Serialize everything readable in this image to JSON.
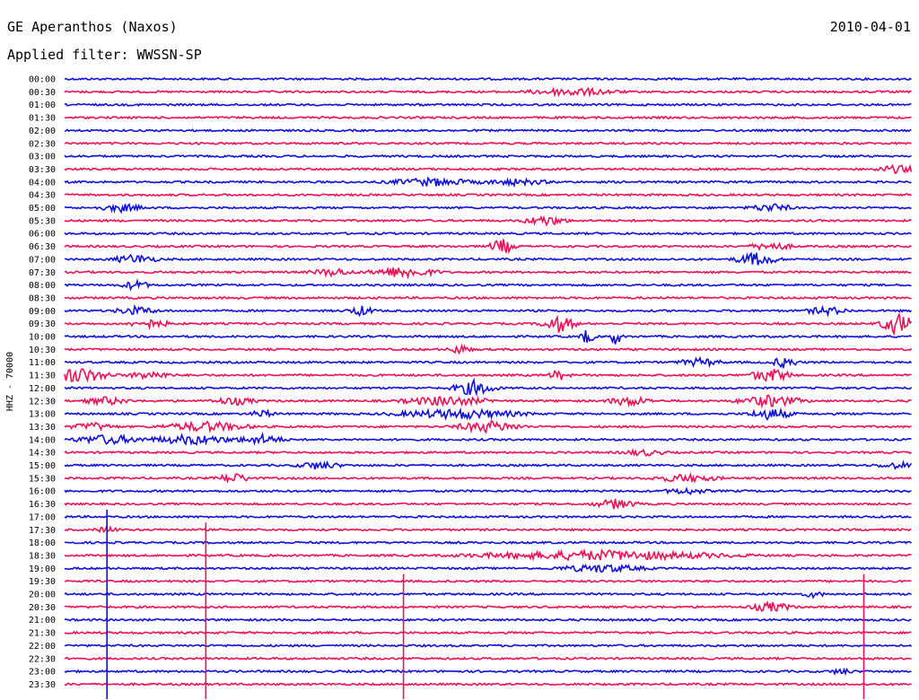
{
  "chart_data": {
    "type": "line",
    "title": "GE Aperanthos (Naxos)",
    "subtitle": "Applied filter: WWSSN-SP",
    "date": "2010-04-01",
    "ylabel": "HHZ - 70000",
    "ytick_labels": [
      "00:00",
      "00:30",
      "01:00",
      "01:30",
      "02:00",
      "02:30",
      "03:00",
      "03:30",
      "04:00",
      "04:30",
      "05:00",
      "05:30",
      "06:00",
      "06:30",
      "07:00",
      "07:30",
      "08:00",
      "08:30",
      "09:00",
      "09:30",
      "10:00",
      "10:30",
      "11:00",
      "11:30",
      "12:00",
      "12:30",
      "13:00",
      "13:30",
      "14:00",
      "14:30",
      "15:00",
      "15:30",
      "16:00",
      "16:30",
      "17:00",
      "17:30",
      "18:00",
      "18:30",
      "19:00",
      "19:30",
      "20:00",
      "20:30",
      "21:00",
      "21:30",
      "22:00",
      "22:30",
      "23:00",
      "23:30"
    ],
    "minutes_per_line": 30,
    "colors": [
      "#1010dd",
      "#ee1155"
    ],
    "events": [
      {
        "line": 1,
        "minute": 18,
        "amp": 4,
        "dur": 2
      },
      {
        "line": 7,
        "minute": 29.5,
        "amp": 4,
        "dur": 1
      },
      {
        "line": 8,
        "minute": 13,
        "amp": 4,
        "dur": 2
      },
      {
        "line": 8,
        "minute": 16,
        "amp": 3,
        "dur": 1.5
      },
      {
        "line": 10,
        "minute": 2,
        "amp": 4,
        "dur": 1
      },
      {
        "line": 10,
        "minute": 25,
        "amp": 4,
        "dur": 1
      },
      {
        "line": 11,
        "minute": 17,
        "amp": 5,
        "dur": 1
      },
      {
        "line": 13,
        "minute": 15.5,
        "amp": 8,
        "dur": 0.6
      },
      {
        "line": 13,
        "minute": 25,
        "amp": 4,
        "dur": 1
      },
      {
        "line": 14,
        "minute": 2.5,
        "amp": 5,
        "dur": 1
      },
      {
        "line": 14,
        "minute": 24.5,
        "amp": 7,
        "dur": 1
      },
      {
        "line": 15,
        "minute": 12,
        "amp": 6,
        "dur": 1.5
      },
      {
        "line": 15,
        "minute": 9.5,
        "amp": 4,
        "dur": 1
      },
      {
        "line": 16,
        "minute": 2.5,
        "amp": 5,
        "dur": 0.6
      },
      {
        "line": 18,
        "minute": 2.5,
        "amp": 4,
        "dur": 1
      },
      {
        "line": 18,
        "minute": 10.5,
        "amp": 5,
        "dur": 0.6
      },
      {
        "line": 18,
        "minute": 27,
        "amp": 4,
        "dur": 1
      },
      {
        "line": 19,
        "minute": 3,
        "amp": 4,
        "dur": 1
      },
      {
        "line": 19,
        "minute": 17.5,
        "amp": 9,
        "dur": 0.8
      },
      {
        "line": 19,
        "minute": 29.5,
        "amp": 12,
        "dur": 0.8
      },
      {
        "line": 20,
        "minute": 18.5,
        "amp": 9,
        "dur": 0.3
      },
      {
        "line": 20,
        "minute": 19.5,
        "amp": 9,
        "dur": 0.3
      },
      {
        "line": 21,
        "minute": 14,
        "amp": 5,
        "dur": 0.5
      },
      {
        "line": 22,
        "minute": 22.5,
        "amp": 4,
        "dur": 1
      },
      {
        "line": 22,
        "minute": 25.5,
        "amp": 6,
        "dur": 0.6
      },
      {
        "line": 23,
        "minute": 0.5,
        "amp": 8,
        "dur": 1.5
      },
      {
        "line": 23,
        "minute": 3,
        "amp": 4,
        "dur": 1
      },
      {
        "line": 23,
        "minute": 17.5,
        "amp": 5,
        "dur": 0.5
      },
      {
        "line": 23,
        "minute": 25,
        "amp": 7,
        "dur": 1
      },
      {
        "line": 24,
        "minute": 14.5,
        "amp": 8,
        "dur": 1
      },
      {
        "line": 25,
        "minute": 1.5,
        "amp": 4,
        "dur": 1
      },
      {
        "line": 25,
        "minute": 6,
        "amp": 4,
        "dur": 1
      },
      {
        "line": 25,
        "minute": 13.5,
        "amp": 5,
        "dur": 2
      },
      {
        "line": 25,
        "minute": 20,
        "amp": 5,
        "dur": 1
      },
      {
        "line": 25,
        "minute": 25,
        "amp": 6,
        "dur": 1.5
      },
      {
        "line": 26,
        "minute": 7,
        "amp": 4,
        "dur": 0.5
      },
      {
        "line": 26,
        "minute": 14,
        "amp": 5,
        "dur": 3
      },
      {
        "line": 26,
        "minute": 25,
        "amp": 6,
        "dur": 1
      },
      {
        "line": 27,
        "minute": 1,
        "amp": 4,
        "dur": 1
      },
      {
        "line": 27,
        "minute": 5,
        "amp": 5,
        "dur": 2
      },
      {
        "line": 27,
        "minute": 15,
        "amp": 6,
        "dur": 1.5
      },
      {
        "line": 28,
        "minute": 1.5,
        "amp": 5,
        "dur": 1.5
      },
      {
        "line": 28,
        "minute": 4.5,
        "amp": 5,
        "dur": 2
      },
      {
        "line": 28,
        "minute": 7,
        "amp": 5,
        "dur": 1
      },
      {
        "line": 29,
        "minute": 20.5,
        "amp": 3,
        "dur": 1
      },
      {
        "line": 30,
        "minute": 9,
        "amp": 4,
        "dur": 1
      },
      {
        "line": 30,
        "minute": 29.5,
        "amp": 3,
        "dur": 1
      },
      {
        "line": 31,
        "minute": 6,
        "amp": 5,
        "dur": 0.8
      },
      {
        "line": 31,
        "minute": 22,
        "amp": 4,
        "dur": 1.5
      },
      {
        "line": 32,
        "minute": 22,
        "amp": 3,
        "dur": 1
      },
      {
        "line": 33,
        "minute": 19.5,
        "amp": 5,
        "dur": 1
      },
      {
        "line": 35,
        "minute": 1.5,
        "amp": 3,
        "dur": 0.5
      },
      {
        "line": 37,
        "minute": 19,
        "amp": 5,
        "dur": 6
      },
      {
        "line": 38,
        "minute": 19,
        "amp": 4,
        "dur": 2
      },
      {
        "line": 40,
        "minute": 26.5,
        "amp": 3,
        "dur": 0.5
      },
      {
        "line": 41,
        "minute": 25,
        "amp": 5,
        "dur": 1
      },
      {
        "line": 46,
        "minute": 27.5,
        "amp": 3,
        "dur": 0.5
      }
    ],
    "spikes": [
      {
        "line": 34,
        "minute": 1.5,
        "to_line": 47
      },
      {
        "line": 35,
        "minute": 5,
        "to_line": 47
      },
      {
        "line": 39,
        "minute": 12,
        "to_line": 47
      },
      {
        "line": 39,
        "minute": 28.3,
        "to_line": 47
      }
    ]
  }
}
